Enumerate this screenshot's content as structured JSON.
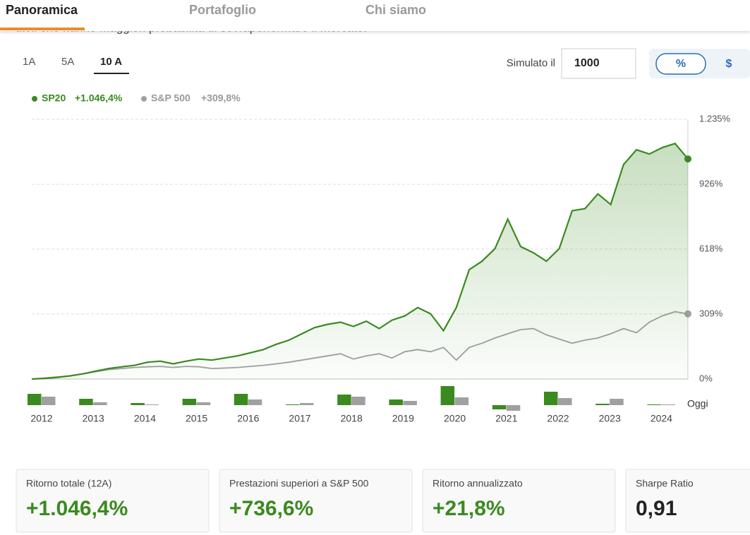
{
  "tabs": [
    "Panoramica",
    "Portafoglio",
    "Chi siamo"
  ],
  "intro_text": "titoli che hanno maggiori probabilità di sovraperformare il mercato.",
  "periods": [
    "1A",
    "5A",
    "10 A"
  ],
  "simulated_label": "Simulato il",
  "simulated_value": "1000",
  "units": [
    "%",
    "$"
  ],
  "chart_data": [
    {
      "type": "line",
      "x": [
        2012,
        2012.25,
        2012.5,
        2012.75,
        2013,
        2013.25,
        2013.5,
        2013.75,
        2014,
        2014.25,
        2014.5,
        2014.75,
        2015,
        2015.25,
        2015.5,
        2015.75,
        2016,
        2016.25,
        2016.5,
        2016.75,
        2017,
        2017.25,
        2017.5,
        2017.75,
        2018,
        2018.25,
        2018.5,
        2018.75,
        2019,
        2019.25,
        2019.5,
        2019.75,
        2020,
        2020.25,
        2020.5,
        2020.75,
        2021,
        2021.25,
        2021.5,
        2021.75,
        2022,
        2022.25,
        2022.5,
        2022.75,
        2023,
        2023.25,
        2023.5,
        2023.75,
        2024,
        2024.25,
        2024.5,
        2024.75
      ],
      "xlim": [
        2012,
        2024.75
      ],
      "series": [
        {
          "name": "SP20",
          "change_label": "+1.046,4%",
          "color": "#3a8a1f",
          "values": [
            0,
            3,
            8,
            15,
            25,
            38,
            50,
            58,
            65,
            80,
            85,
            72,
            85,
            95,
            90,
            100,
            110,
            125,
            140,
            165,
            185,
            215,
            245,
            260,
            270,
            250,
            275,
            240,
            280,
            300,
            340,
            310,
            230,
            340,
            520,
            560,
            620,
            760,
            630,
            600,
            560,
            620,
            800,
            810,
            880,
            830,
            1020,
            1090,
            1070,
            1100,
            1120,
            1046.4
          ]
        },
        {
          "name": "S&P 500",
          "change_label": "+309,8%",
          "color": "#a0a0a0",
          "values": [
            0,
            5,
            10,
            15,
            25,
            35,
            45,
            50,
            55,
            58,
            60,
            55,
            60,
            58,
            50,
            52,
            55,
            60,
            65,
            72,
            80,
            90,
            100,
            110,
            120,
            95,
            110,
            120,
            100,
            130,
            140,
            130,
            150,
            90,
            150,
            170,
            195,
            215,
            235,
            240,
            210,
            190,
            170,
            185,
            195,
            215,
            240,
            220,
            270,
            300,
            320,
            309.8
          ]
        }
      ],
      "ylim": [
        0,
        1235
      ],
      "yticks": [
        {
          "value": 0,
          "label": "0%"
        },
        {
          "value": 309,
          "label": "309%"
        },
        {
          "value": 618,
          "label": "618%"
        },
        {
          "value": 926,
          "label": "926%"
        },
        {
          "value": 1235,
          "label": "1.235%"
        }
      ],
      "grid": true
    },
    {
      "type": "bar",
      "categories": [
        "2012",
        "2013",
        "2014",
        "2015",
        "2016",
        "2017",
        "2018",
        "2019",
        "2020",
        "2021",
        "2022",
        "2023",
        "2024"
      ],
      "end_label": "Oggi",
      "ylim": [
        -30,
        90
      ],
      "series": [
        {
          "name": "SP20",
          "color": "#3a8a1f",
          "values": [
            48,
            27,
            9,
            27,
            48,
            3,
            45,
            24,
            81,
            -18,
            57,
            6,
            3
          ]
        },
        {
          "name": "S&P 500",
          "color": "#a0a0a0",
          "values": [
            36,
            12,
            3,
            12,
            24,
            9,
            36,
            18,
            33,
            -24,
            30,
            27,
            3
          ]
        }
      ]
    }
  ],
  "stats": [
    {
      "label": "Ritorno totale (12A)",
      "value": "+1.046,4%"
    },
    {
      "label": "Prestazioni superiori a S&P 500",
      "value": "+736,6%"
    },
    {
      "label": "Ritorno annualizzato",
      "value": "+21,8%"
    },
    {
      "label": "Sharpe Ratio",
      "value": "0,91"
    }
  ]
}
